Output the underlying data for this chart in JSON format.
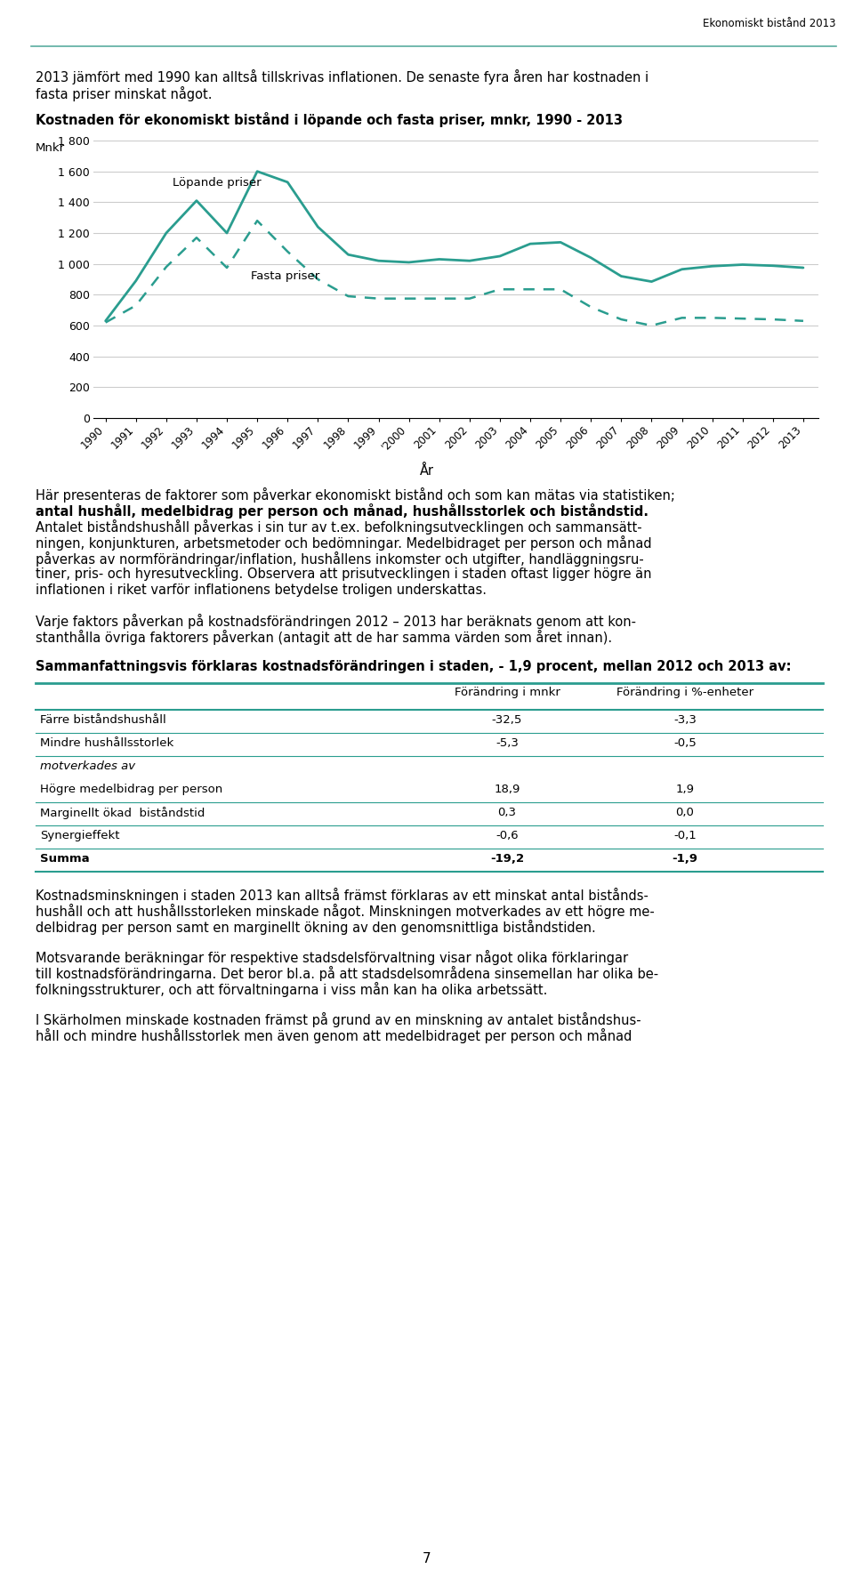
{
  "header_text": "Ekonomiskt bistånd 2013",
  "intro_text1": "2013 jämfört med 1990 kan alltså tillskrivas inflationen. De senaste fyra åren har kostnaden i",
  "intro_text2": "fasta priser minskat något.",
  "chart_title": "Kostnaden för ekonomiskt bistånd i löpande och fasta priser, mnkr, 1990 - 2013",
  "ylabel": "Mnkr",
  "xlabel": "År",
  "years": [
    1990,
    1991,
    1992,
    1993,
    1994,
    1995,
    1996,
    1997,
    1998,
    1999,
    2000,
    2001,
    2002,
    2003,
    2004,
    2005,
    2006,
    2007,
    2008,
    2009,
    2010,
    2011,
    2012,
    2013
  ],
  "lopande_priser": [
    630,
    890,
    1200,
    1410,
    1200,
    1600,
    1530,
    1240,
    1060,
    1020,
    1010,
    1030,
    1020,
    1050,
    1130,
    1140,
    1040,
    920,
    885,
    965,
    985,
    995,
    988,
    975
  ],
  "fasta_priser": [
    620,
    730,
    980,
    1170,
    975,
    1280,
    1080,
    900,
    790,
    775,
    775,
    775,
    775,
    835,
    835,
    835,
    720,
    640,
    600,
    650,
    650,
    645,
    640,
    630
  ],
  "line_color": "#2a9d8f",
  "ylim": [
    0,
    1800
  ],
  "yticks": [
    0,
    200,
    400,
    600,
    800,
    1000,
    1200,
    1400,
    1600,
    1800
  ],
  "label_lopande": "Löpande priser",
  "label_fasta": "Fasta priser",
  "teal_header_line_color": "#5aada0",
  "page_number": "7",
  "table_col1_header": "Förändring i mnkr",
  "table_col2_header": "Förändring i %-enheter",
  "table_rows": [
    {
      "label": "Färre biståndshushåll",
      "col1": "-32,5",
      "col2": "-3,3",
      "bold": false,
      "italic": false
    },
    {
      "label": "Mindre hushållsstorlek",
      "col1": "-5,3",
      "col2": "-0,5",
      "bold": false,
      "italic": false
    },
    {
      "label": "motverkades av",
      "col1": "",
      "col2": "",
      "bold": false,
      "italic": true
    },
    {
      "label": "Högre medelbidrag per person",
      "col1": "18,9",
      "col2": "1,9",
      "bold": false,
      "italic": false
    },
    {
      "label": "Marginellt ökad  biståndstid",
      "col1": "0,3",
      "col2": "0,0",
      "bold": false,
      "italic": false
    },
    {
      "label": "Synergieffekt",
      "col1": "-0,6",
      "col2": "-0,1",
      "bold": false,
      "italic": false
    },
    {
      "label": "Summa",
      "col1": "-19,2",
      "col2": "-1,9",
      "bold": true,
      "italic": false
    }
  ]
}
